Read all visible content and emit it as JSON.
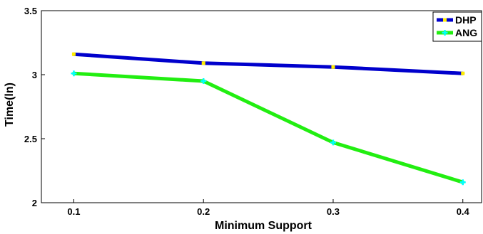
{
  "chart_data": {
    "type": "line",
    "xlabel": "Minimum Support",
    "ylabel": "Time(ln)",
    "xlim": [
      0.1,
      0.4
    ],
    "ylim": [
      2,
      3.5
    ],
    "x_ticks": [
      "0.1",
      "0.2",
      "0.3",
      "0.4"
    ],
    "y_ticks": [
      "2",
      "2.5",
      "3",
      "3.5"
    ],
    "grid": false,
    "legend_position": "top-right",
    "x": [
      0.1,
      0.2,
      0.3,
      0.4
    ],
    "series": [
      {
        "name": "DHP",
        "values": [
          3.16,
          3.09,
          3.06,
          3.01
        ],
        "line_color": "#0000cc",
        "marker_color": "#ffee00"
      },
      {
        "name": "ANG",
        "values": [
          3.01,
          2.95,
          2.47,
          2.16
        ],
        "line_color": "#22ee11",
        "marker_color": "#00ffff"
      }
    ]
  }
}
